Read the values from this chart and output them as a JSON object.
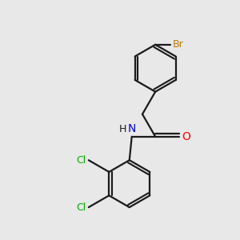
{
  "background_color": "#e8e8e8",
  "bond_color": "#1a1a1a",
  "N_color": "#0000ee",
  "O_color": "#ff0000",
  "Br_color": "#bb7700",
  "Cl_color": "#00aa00",
  "H_color": "#1a1a1a",
  "figsize": [
    3.0,
    3.0
  ],
  "dpi": 100,
  "xlim": [
    0,
    10
  ],
  "ylim": [
    0,
    10
  ]
}
